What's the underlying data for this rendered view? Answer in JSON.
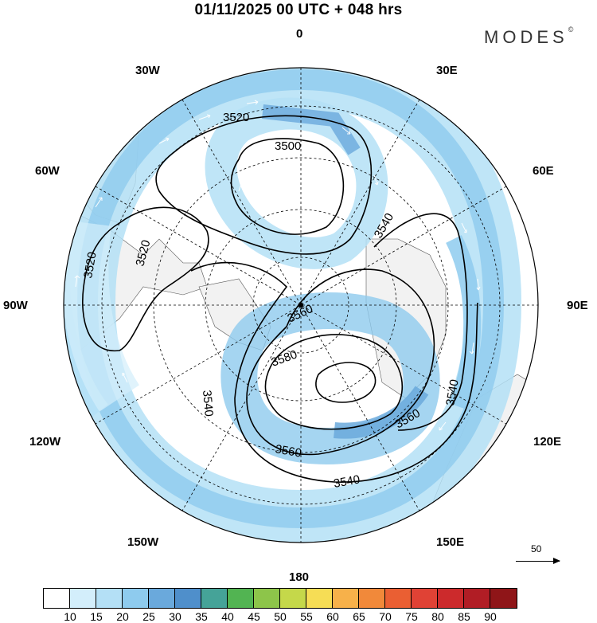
{
  "title": "01/11/2025  00 UTC  + 048 hrs",
  "brand": {
    "name": "MODES",
    "mark": "©"
  },
  "longitude_labels": [
    {
      "id": "0",
      "text": "0"
    },
    {
      "id": "30e",
      "text": "30E"
    },
    {
      "id": "60e",
      "text": "60E"
    },
    {
      "id": "90e",
      "text": "90E"
    },
    {
      "id": "120e",
      "text": "120E"
    },
    {
      "id": "150e",
      "text": "150E"
    },
    {
      "id": "180",
      "text": "180"
    },
    {
      "id": "150w",
      "text": "150W"
    },
    {
      "id": "120w",
      "text": "120W"
    },
    {
      "id": "90w",
      "text": "90W"
    },
    {
      "id": "60w",
      "text": "60W"
    },
    {
      "id": "30w",
      "text": "30W"
    }
  ],
  "contour_labels": [
    {
      "id": "c1",
      "text": "3520"
    },
    {
      "id": "c2",
      "text": "3500"
    },
    {
      "id": "c3",
      "text": "3540"
    },
    {
      "id": "c4",
      "text": "3520"
    },
    {
      "id": "c5",
      "text": "3520"
    },
    {
      "id": "c6",
      "text": "3560"
    },
    {
      "id": "c7",
      "text": "3580"
    },
    {
      "id": "c8",
      "text": "3540"
    },
    {
      "id": "c9",
      "text": "3540"
    },
    {
      "id": "c10",
      "text": "3560"
    },
    {
      "id": "c11",
      "text": "3560"
    },
    {
      "id": "c12",
      "text": "3540"
    }
  ],
  "reference_vector": {
    "label": "50"
  },
  "colorbar": {
    "colors": [
      "#ffffff",
      "#d3eefb",
      "#b4e0f6",
      "#8ecbee",
      "#6aa9dc",
      "#4f8fcb",
      "#45a398",
      "#52b452",
      "#8dc54a",
      "#c5d84a",
      "#f6dd55",
      "#f7b14a",
      "#f1893a",
      "#ea5f33",
      "#e04235",
      "#cc2a2c",
      "#b11d25",
      "#8f1518"
    ],
    "ticks": [
      "10",
      "15",
      "20",
      "25",
      "30",
      "35",
      "40",
      "45",
      "50",
      "55",
      "60",
      "65",
      "70",
      "75",
      "80",
      "85",
      "90"
    ]
  }
}
